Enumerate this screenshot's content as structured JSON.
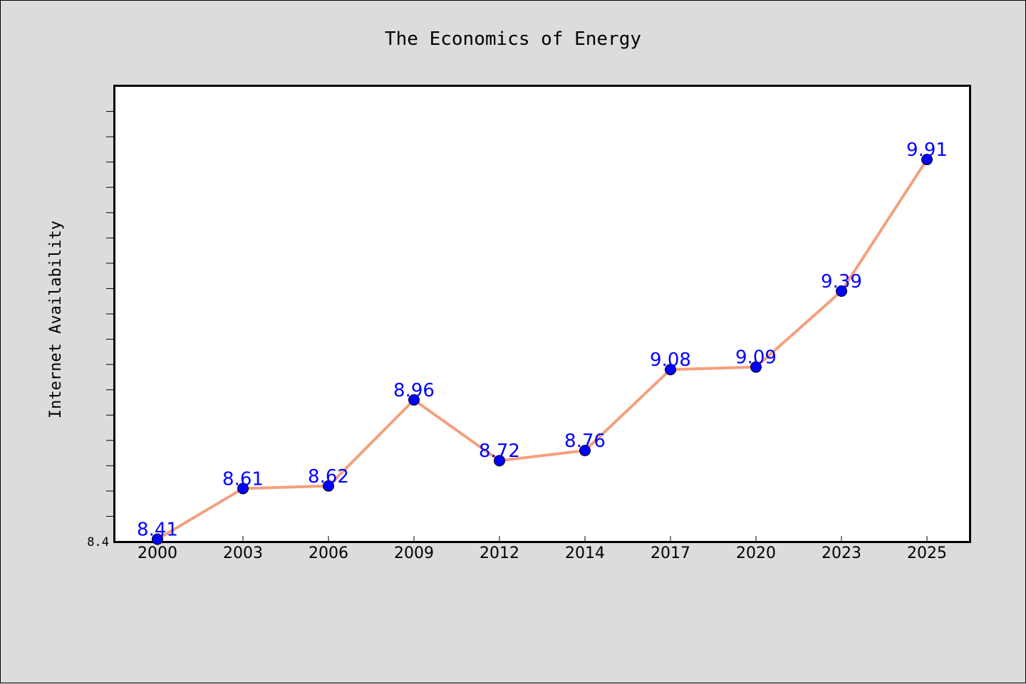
{
  "chart_data": {
    "type": "line",
    "title": "The Economics of Energy",
    "xlabel": "",
    "ylabel": "Internet Availability",
    "categories": [
      "2000",
      "2003",
      "2006",
      "2009",
      "2012",
      "2014",
      "2017",
      "2020",
      "2023",
      "2025"
    ],
    "series": [
      {
        "values": [
          8.41,
          8.61,
          8.62,
          8.96,
          8.72,
          8.76,
          9.08,
          9.09,
          9.39,
          9.91
        ],
        "labels": [
          "8.41",
          "8.61",
          "8.62",
          "8.96",
          "8.72",
          "8.76",
          "9.08",
          "9.09",
          "9.39",
          "9.91"
        ]
      }
    ],
    "ylim": [
      8.4,
      10.2
    ],
    "yticks_labeled": [
      "8.4"
    ],
    "grid": false,
    "legend": "none",
    "colors": {
      "line": "#f4a07e",
      "marker": "#0000ff",
      "data_label": "#0000ff",
      "plot_bg": "#ffffff",
      "page_bg": "#dcdcdc"
    }
  }
}
